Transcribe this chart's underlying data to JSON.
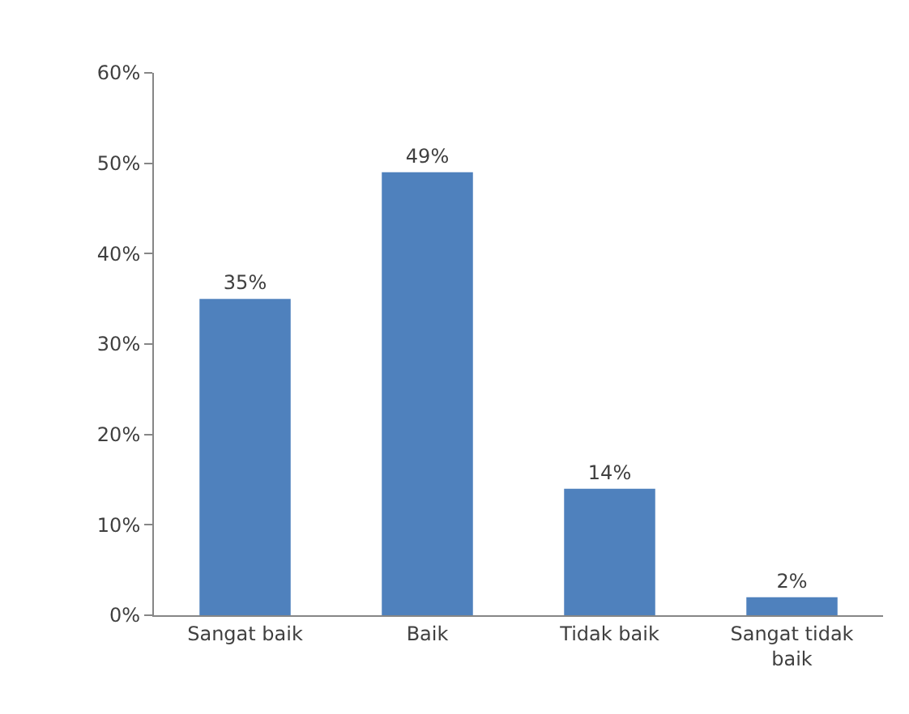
{
  "chart_data": {
    "type": "bar",
    "categories": [
      "Sangat baik",
      "Baik",
      "Tidak baik",
      "Sangat tidak baik"
    ],
    "values": [
      35,
      49,
      14,
      2
    ],
    "value_labels": [
      "35%",
      "49%",
      "14%",
      "2%"
    ],
    "color": "#4f81bd",
    "ylim": [
      0,
      60
    ],
    "yticks": [
      {
        "value": 0,
        "label": "0%"
      },
      {
        "value": 10,
        "label": "10%"
      },
      {
        "value": 20,
        "label": "20%"
      },
      {
        "value": 30,
        "label": "30%"
      },
      {
        "value": 40,
        "label": "40%"
      },
      {
        "value": 50,
        "label": "50%"
      },
      {
        "value": 60,
        "label": "60%"
      }
    ],
    "legend": false
  }
}
